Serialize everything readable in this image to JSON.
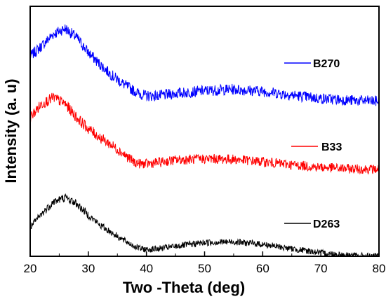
{
  "chart_data": {
    "type": "line",
    "title": "",
    "xlabel": "Two -Theta (deg)",
    "ylabel": "Intensity (a. u)",
    "xlim": [
      20,
      80
    ],
    "x_ticks": [
      20,
      30,
      40,
      50,
      60,
      70,
      80
    ],
    "y_ticks_shown": false,
    "grid": false,
    "legend": "inline labels at right of each curve",
    "series": [
      {
        "name": "B270",
        "color": "#0000ff",
        "x": [
          20,
          22,
          24,
          26,
          28,
          30,
          32,
          34,
          36,
          38,
          39,
          40,
          42,
          45,
          50,
          55,
          60,
          65,
          70,
          75,
          80
        ],
        "y": [
          0.8,
          0.842,
          0.889,
          0.912,
          0.875,
          0.815,
          0.768,
          0.725,
          0.69,
          0.66,
          0.648,
          0.642,
          0.642,
          0.651,
          0.662,
          0.668,
          0.66,
          0.645,
          0.631,
          0.624,
          0.62
        ]
      },
      {
        "name": "B33",
        "color": "#ff0000",
        "x": [
          20,
          22,
          24,
          26,
          28,
          30,
          32,
          34,
          36,
          38,
          39,
          40,
          42,
          45,
          50,
          55,
          60,
          65,
          70,
          75,
          80
        ],
        "y": [
          0.555,
          0.61,
          0.635,
          0.61,
          0.555,
          0.51,
          0.475,
          0.445,
          0.41,
          0.375,
          0.37,
          0.37,
          0.375,
          0.385,
          0.39,
          0.388,
          0.378,
          0.366,
          0.356,
          0.35,
          0.348
        ]
      },
      {
        "name": "D263",
        "color": "#000000",
        "x": [
          20,
          22,
          24,
          26,
          28,
          30,
          32,
          34,
          36,
          38,
          39,
          40,
          42,
          45,
          50,
          55,
          60,
          65,
          70,
          75,
          80
        ],
        "y": [
          0.115,
          0.17,
          0.218,
          0.235,
          0.21,
          0.165,
          0.125,
          0.095,
          0.065,
          0.04,
          0.03,
          0.027,
          0.03,
          0.04,
          0.055,
          0.058,
          0.048,
          0.03,
          0.014,
          0.004,
          0.0
        ]
      }
    ]
  }
}
